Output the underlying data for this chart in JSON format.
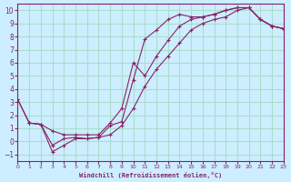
{
  "xlabel": "Windchill (Refroidissement éolien,°C)",
  "bg_color": "#cceeff",
  "grid_color": "#aaddcc",
  "line_color": "#882266",
  "xlim": [
    0,
    23
  ],
  "ylim": [
    -1.5,
    10.5
  ],
  "xticks": [
    0,
    1,
    2,
    3,
    4,
    5,
    6,
    7,
    8,
    9,
    10,
    11,
    12,
    13,
    14,
    15,
    16,
    17,
    18,
    19,
    20,
    21,
    22,
    23
  ],
  "yticks": [
    -1,
    0,
    1,
    2,
    3,
    4,
    5,
    6,
    7,
    8,
    9,
    10
  ],
  "curve1_x": [
    0,
    1,
    2,
    3,
    4,
    5,
    6,
    7,
    8,
    9,
    10,
    11,
    12,
    13,
    14,
    15,
    16,
    17,
    18,
    19,
    20,
    21,
    22,
    23
  ],
  "curve1_y": [
    3.2,
    1.4,
    1.3,
    0.8,
    0.5,
    0.5,
    0.5,
    0.5,
    1.4,
    2.5,
    6.0,
    5.0,
    6.5,
    7.7,
    8.8,
    9.3,
    9.5,
    9.7,
    10.0,
    10.2,
    10.2,
    9.3,
    8.8,
    8.6
  ],
  "curve2_x": [
    0,
    1,
    2,
    3,
    4,
    5,
    6,
    7,
    8,
    9,
    10,
    11,
    12,
    13,
    14,
    15,
    16,
    17,
    18,
    19,
    20,
    21,
    22,
    23
  ],
  "curve2_y": [
    3.2,
    1.4,
    1.3,
    -0.8,
    -0.3,
    0.2,
    0.2,
    0.3,
    1.2,
    1.5,
    4.7,
    7.8,
    8.5,
    9.3,
    9.7,
    9.5,
    9.5,
    9.7,
    10.0,
    10.2,
    10.2,
    9.3,
    8.8,
    8.6
  ],
  "curve3_x": [
    1,
    2,
    3,
    4,
    5,
    6,
    7,
    8,
    9,
    10,
    11,
    12,
    13,
    14,
    15,
    16,
    17,
    18,
    19,
    20,
    21,
    22,
    23
  ],
  "curve3_y": [
    1.4,
    1.3,
    -0.3,
    0.2,
    0.3,
    0.2,
    0.3,
    0.5,
    1.2,
    2.5,
    4.2,
    5.5,
    6.5,
    7.5,
    8.5,
    9.0,
    9.3,
    9.5,
    10.0,
    10.2,
    9.3,
    8.8,
    8.6
  ]
}
